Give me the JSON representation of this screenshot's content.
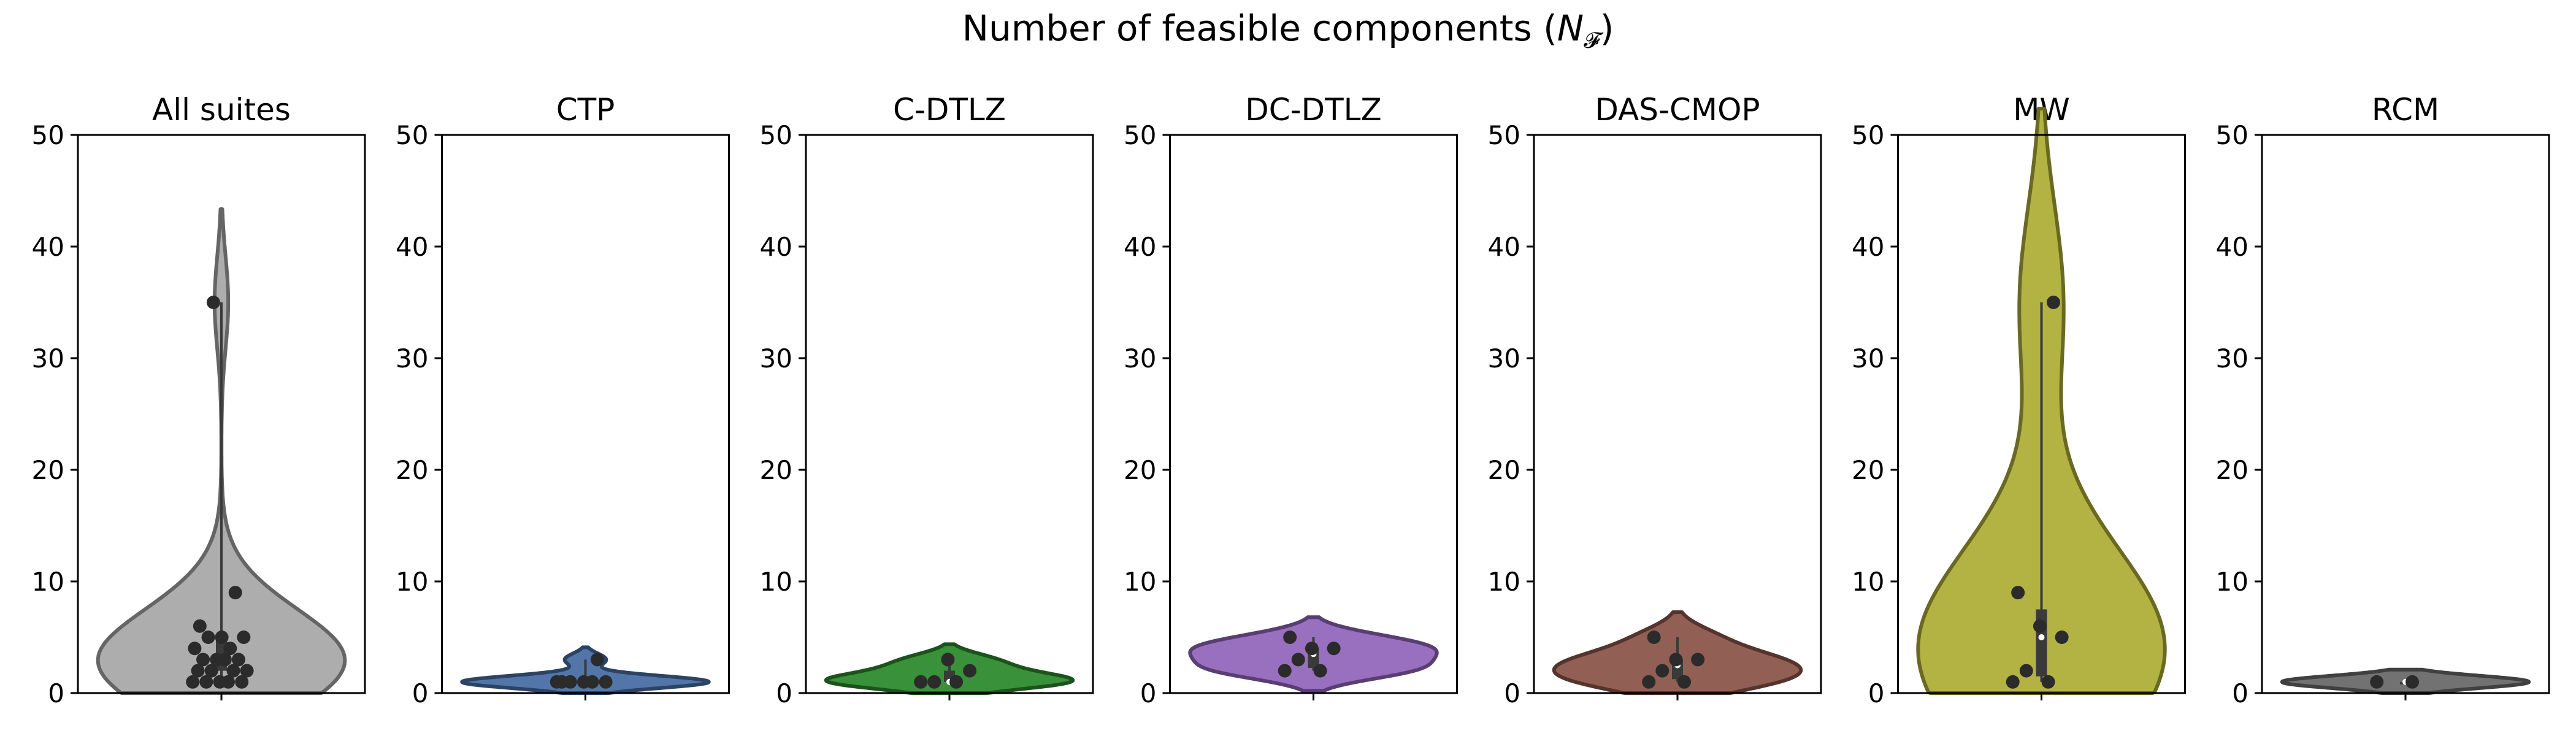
{
  "chart_data": {
    "type": "violin",
    "suptitle": "Number of feasible components (",
    "suptitle_symbol": "N",
    "suptitle_subscript": "𝓕",
    "suptitle_end": ")",
    "ylim": [
      0,
      50
    ],
    "yticks": [
      0,
      10,
      20,
      30,
      40,
      50
    ],
    "grid": false,
    "panels": [
      {
        "name": "All suites",
        "color": "#a9a9a9",
        "values": [
          1,
          1,
          1,
          1,
          1,
          2,
          2,
          2,
          2,
          3,
          3,
          3,
          3,
          4,
          4,
          5,
          5,
          5,
          6,
          9,
          35
        ]
      },
      {
        "name": "CTP",
        "color": "#4a6fa5",
        "values": [
          1,
          1,
          1,
          1,
          1,
          1,
          3
        ]
      },
      {
        "name": "C-DTLZ",
        "color": "#2e8b2e",
        "values": [
          1,
          1,
          1,
          2,
          3
        ]
      },
      {
        "name": "DC-DTLZ",
        "color": "#9467bd",
        "values": [
          2,
          2,
          3,
          4,
          4,
          5
        ]
      },
      {
        "name": "DAS-CMOP",
        "color": "#8c564b",
        "values": [
          1,
          1,
          2,
          3,
          3,
          5
        ]
      },
      {
        "name": "MW",
        "color": "#afaf3a",
        "values": [
          1,
          1,
          2,
          5,
          6,
          9,
          35
        ]
      },
      {
        "name": "RCM",
        "color": "#6a6a6a",
        "values": [
          1,
          1
        ]
      }
    ]
  }
}
